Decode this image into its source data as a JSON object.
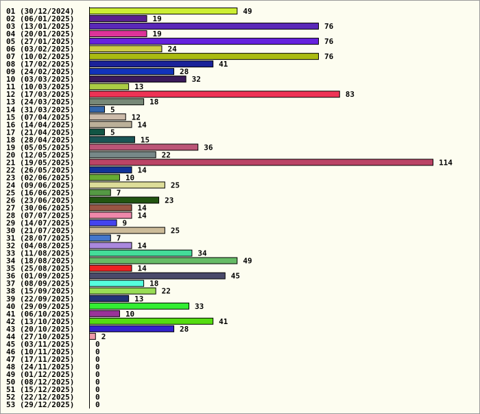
{
  "chart_data": {
    "type": "bar",
    "orientation": "horizontal",
    "categories": [
      "01 (30/12/2024)",
      "02 (06/01/2025)",
      "03 (13/01/2025)",
      "04 (20/01/2025)",
      "05 (27/01/2025)",
      "06 (03/02/2025)",
      "07 (10/02/2025)",
      "08 (17/02/2025)",
      "09 (24/02/2025)",
      "10 (03/03/2025)",
      "11 (10/03/2025)",
      "12 (17/03/2025)",
      "13 (24/03/2025)",
      "14 (31/03/2025)",
      "15 (07/04/2025)",
      "16 (14/04/2025)",
      "17 (21/04/2025)",
      "18 (28/04/2025)",
      "19 (05/05/2025)",
      "20 (12/05/2025)",
      "21 (19/05/2025)",
      "22 (26/05/2025)",
      "23 (02/06/2025)",
      "24 (09/06/2025)",
      "25 (16/06/2025)",
      "26 (23/06/2025)",
      "27 (30/06/2025)",
      "28 (07/07/2025)",
      "29 (14/07/2025)",
      "30 (21/07/2025)",
      "31 (28/07/2025)",
      "32 (04/08/2025)",
      "33 (11/08/2025)",
      "34 (18/08/2025)",
      "35 (25/08/2025)",
      "36 (01/09/2025)",
      "37 (08/09/2025)",
      "38 (15/09/2025)",
      "39 (22/09/2025)",
      "40 (29/09/2025)",
      "41 (06/10/2025)",
      "42 (13/10/2025)",
      "43 (20/10/2025)",
      "44 (27/10/2025)",
      "45 (03/11/2025)",
      "46 (10/11/2025)",
      "47 (17/11/2025)",
      "48 (24/11/2025)",
      "49 (01/12/2025)",
      "50 (08/12/2025)",
      "51 (15/12/2025)",
      "52 (22/12/2025)",
      "53 (29/12/2025)"
    ],
    "values": [
      49,
      19,
      76,
      19,
      76,
      24,
      76,
      41,
      28,
      32,
      13,
      83,
      18,
      5,
      12,
      14,
      5,
      15,
      36,
      22,
      114,
      14,
      10,
      25,
      7,
      23,
      14,
      14,
      9,
      25,
      7,
      14,
      34,
      49,
      14,
      45,
      18,
      22,
      13,
      33,
      10,
      41,
      28,
      2,
      0,
      0,
      0,
      0,
      0,
      0,
      0,
      0,
      0
    ],
    "colors": [
      "#ccee33",
      "#5a2090",
      "#5a28b8",
      "#dd3399",
      "#6622dd",
      "#cccc44",
      "#aabb11",
      "#1a2299",
      "#1133bb",
      "#3a1a5a",
      "#aacc44",
      "#ee3355",
      "#778877",
      "#3366aa",
      "#ccbbaa",
      "#bbb099",
      "#115544",
      "#1a5555",
      "#bb5577",
      "#778888",
      "#bb4466",
      "#113399",
      "#66aa33",
      "#dddd99",
      "#559944",
      "#225511",
      "#995544",
      "#ee88aa",
      "#4444ee",
      "#ccbb99",
      "#4477cc",
      "#aa88dd",
      "#44dd99",
      "#66bb66",
      "#ee2222",
      "#4a4a6a",
      "#55ffdd",
      "#99dd55",
      "#223377",
      "#33ee33",
      "#993399",
      "#55dd11",
      "#3322cc",
      "#ee99aa",
      null,
      null,
      null,
      null,
      null,
      null,
      null,
      null,
      null
    ]
  }
}
